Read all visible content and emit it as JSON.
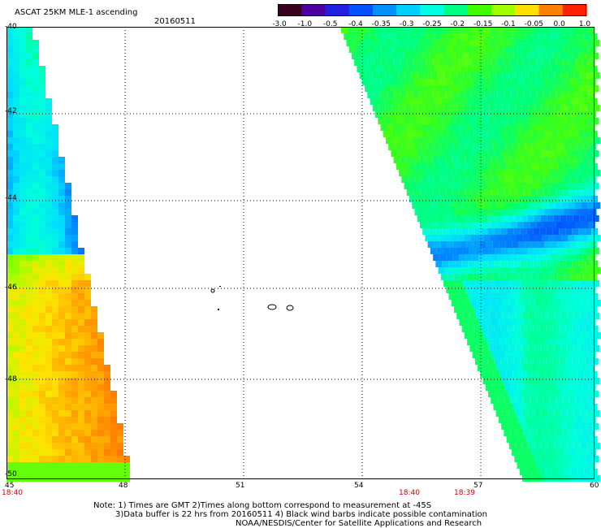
{
  "header": {
    "title": "ASCAT 25KM MLE-1 ascending",
    "date": "20160511"
  },
  "colorbar": {
    "labels": [
      "-3.0",
      "-1.0",
      "-0.5",
      "-0.4",
      "-0.35",
      "-0.3",
      "-0.25",
      "-0.2",
      "-0.15",
      "-0.1",
      "-0.05",
      "0.0",
      "1.0"
    ],
    "colors": [
      "#3a0020",
      "#4b00a0",
      "#2020e0",
      "#0050ff",
      "#0090ff",
      "#00d0ff",
      "#00ffe0",
      "#00ff80",
      "#40ff00",
      "#a0ff00",
      "#ffe000",
      "#ff8000",
      "#ff2000"
    ]
  },
  "map": {
    "lat_labels": [
      "-40",
      "-42",
      "-44",
      "-46",
      "-48",
      "-50"
    ],
    "lon_labels": [
      "45",
      "48",
      "51",
      "54",
      "57",
      "60"
    ],
    "times": [
      "18:40",
      "18:40",
      "18:39"
    ],
    "lat_range": [
      -50,
      -40
    ],
    "lon_range": [
      45,
      60
    ]
  },
  "footer": {
    "line1": "Note: 1) Times are GMT 2)Times along bottom correspond to measurement at -45S",
    "line2": "3)Data buffer is 22 hrs from 20160511 4) Black wind barbs indicate possible contamination",
    "line3": "NOAA/NESDIS/Center for Satellite Applications and Research"
  }
}
